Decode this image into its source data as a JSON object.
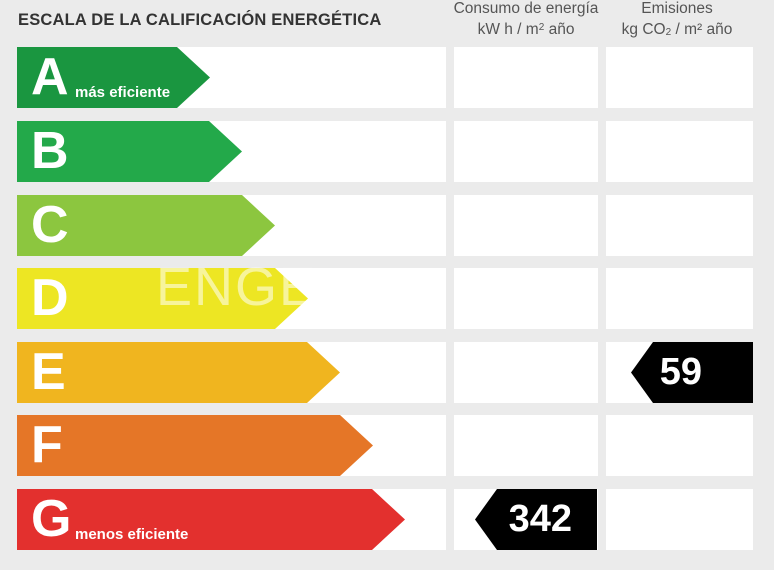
{
  "title": "ESCALA DE LA CALIFICACIÓN ENERGÉTICA",
  "columns": {
    "consumo": {
      "line1": "Consumo de energía",
      "unit_prefix": "kW h  / m",
      "unit_sup": "2",
      "unit_suffix": " año"
    },
    "emisiones": {
      "line1": "Emisiones",
      "unit_prefix": "kg CO",
      "unit_sub": "2",
      "unit_suffix": "  / m² año"
    }
  },
  "watermark": "ENGE",
  "ratings": [
    {
      "letter": "A",
      "sublabel": "más eficiente",
      "color": "#1a9640"
    },
    {
      "letter": "B",
      "sublabel": "",
      "color": "#23a94a"
    },
    {
      "letter": "C",
      "sublabel": "",
      "color": "#8cc63f"
    },
    {
      "letter": "D",
      "sublabel": "",
      "color": "#ede623"
    },
    {
      "letter": "E",
      "sublabel": "",
      "color": "#f0b51f"
    },
    {
      "letter": "F",
      "sublabel": "",
      "color": "#e57627"
    },
    {
      "letter": "G",
      "sublabel": "menos eficiente",
      "color": "#e3302e"
    }
  ],
  "consumo": {
    "rating": "G",
    "value": "342"
  },
  "emisiones": {
    "rating": "E",
    "value": "59"
  }
}
